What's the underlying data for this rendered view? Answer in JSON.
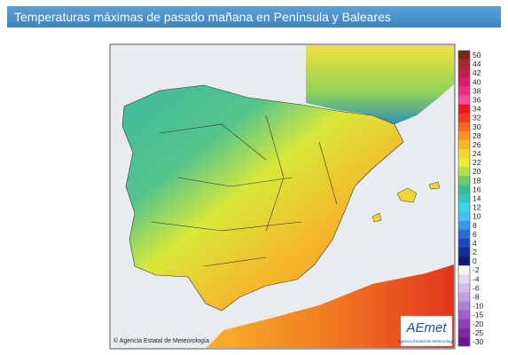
{
  "header": {
    "title": "Temperaturas máximas de pasado mañana en Península y Baleares"
  },
  "copyright": "© Agencia Estatal de Meteorología",
  "logo": {
    "name": "AEmet",
    "subtitle": "Agencia Estatal de Meteorología"
  },
  "legend": [
    {
      "label": 50,
      "color": "#7a2a14"
    },
    {
      "label": 44,
      "color": "#a82a30"
    },
    {
      "label": 42,
      "color": "#c02048"
    },
    {
      "label": 40,
      "color": "#d8206a"
    },
    {
      "label": 38,
      "color": "#e8308a"
    },
    {
      "label": 36,
      "color": "#f050a0"
    },
    {
      "label": 34,
      "color": "#e81818"
    },
    {
      "label": 32,
      "color": "#f03c1c"
    },
    {
      "label": 30,
      "color": "#f56a1e"
    },
    {
      "label": 28,
      "color": "#f79322"
    },
    {
      "label": 26,
      "color": "#f8b52a"
    },
    {
      "label": 24,
      "color": "#f7d634"
    },
    {
      "label": 22,
      "color": "#eaea3a"
    },
    {
      "label": 20,
      "color": "#b8e04a"
    },
    {
      "label": 18,
      "color": "#6ccc6a"
    },
    {
      "label": 16,
      "color": "#3cbc94"
    },
    {
      "label": 14,
      "color": "#34c4c4"
    },
    {
      "label": 12,
      "color": "#3ad8e6"
    },
    {
      "label": 10,
      "color": "#48c0f0"
    },
    {
      "label": 8,
      "color": "#3a96e6"
    },
    {
      "label": 6,
      "color": "#2a6cd4"
    },
    {
      "label": 4,
      "color": "#1e48b8"
    },
    {
      "label": 2,
      "color": "#142e98"
    },
    {
      "label": 0,
      "color": "#0c1c70"
    },
    {
      "label": -2,
      "color": "#f6f2fa"
    },
    {
      "label": -4,
      "color": "#e4d8f2"
    },
    {
      "label": -6,
      "color": "#d2bcea"
    },
    {
      "label": -8,
      "color": "#c09ee2"
    },
    {
      "label": -10,
      "color": "#b080d8"
    },
    {
      "label": -15,
      "color": "#a060cc"
    },
    {
      "label": -20,
      "color": "#9040bc"
    },
    {
      "label": -25,
      "color": "#7e28a8"
    },
    {
      "label": -30,
      "color": "#6a1890"
    }
  ]
}
